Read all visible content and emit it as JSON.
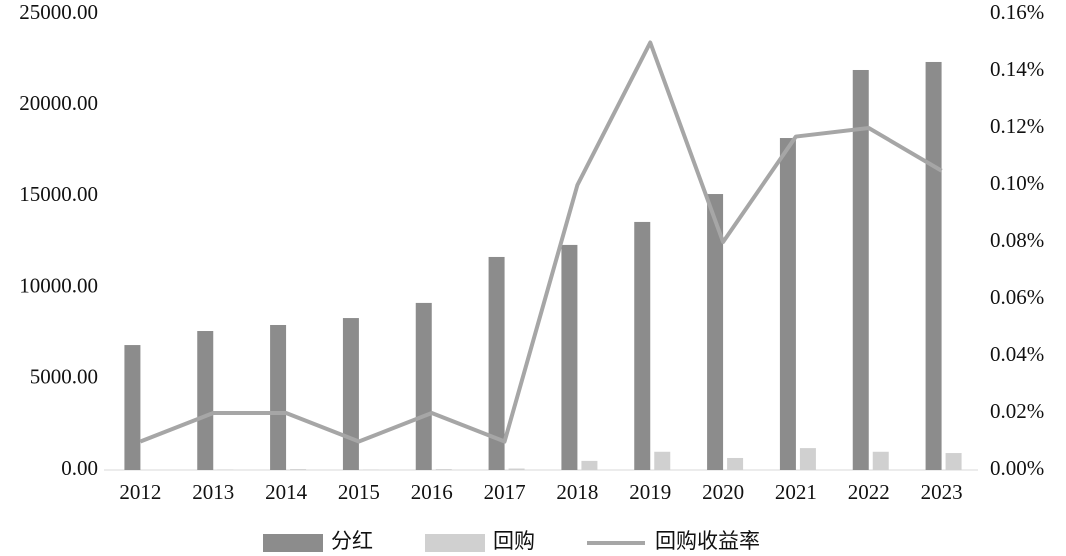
{
  "chart_data": {
    "type": "bar",
    "categories": [
      "2012",
      "2013",
      "2014",
      "2015",
      "2016",
      "2017",
      "2018",
      "2019",
      "2020",
      "2021",
      "2022",
      "2023"
    ],
    "series": [
      {
        "name": "分红",
        "type": "bar",
        "color": "#8c8c8c",
        "values": [
          6850,
          7620,
          7950,
          8330,
          9160,
          11680,
          12340,
          13600,
          15130,
          18200,
          21930,
          22370
        ]
      },
      {
        "name": "回购",
        "type": "bar",
        "color": "#d0d0d0",
        "values": [
          0,
          30,
          50,
          20,
          50,
          80,
          500,
          1000,
          660,
          1200,
          1000,
          930
        ]
      },
      {
        "name": "回购收益率",
        "type": "line",
        "axis": "y2",
        "color": "#a6a6a6",
        "values": [
          0.01,
          0.02,
          0.02,
          0.01,
          0.02,
          0.01,
          0.1,
          0.15,
          0.08,
          0.117,
          0.12,
          0.105
        ]
      }
    ],
    "ylim": [
      0,
      25000
    ],
    "yticks": [
      {
        "value": 0,
        "label": "0.00"
      },
      {
        "value": 5000,
        "label": "5000.00"
      },
      {
        "value": 10000,
        "label": "10000.00"
      },
      {
        "value": 15000,
        "label": "15000.00"
      },
      {
        "value": 20000,
        "label": "20000.00"
      },
      {
        "value": 25000,
        "label": "25000.00"
      }
    ],
    "y2lim": [
      0,
      0.16
    ],
    "y2ticks": [
      {
        "value": 0,
        "label": "0.00%"
      },
      {
        "value": 0.02,
        "label": "0.02%"
      },
      {
        "value": 0.04,
        "label": "0.04%"
      },
      {
        "value": 0.06,
        "label": "0.06%"
      },
      {
        "value": 0.08,
        "label": "0.08%"
      },
      {
        "value": 0.1,
        "label": "0.10%"
      },
      {
        "value": 0.12,
        "label": "0.12%"
      },
      {
        "value": 0.14,
        "label": "0.14%"
      },
      {
        "value": 0.16,
        "label": "0.16%"
      }
    ],
    "legend": "bottom"
  }
}
